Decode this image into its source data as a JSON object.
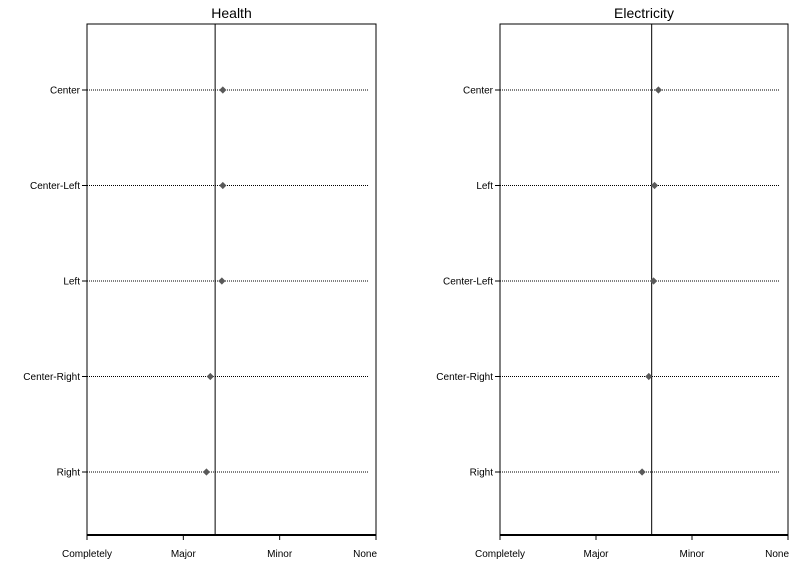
{
  "chart_data": [
    {
      "type": "scatter",
      "title": "Health",
      "categories": [
        "Center",
        "Center-Left",
        "Left",
        "Center-Right",
        "Right"
      ],
      "values": [
        2.41,
        2.41,
        2.4,
        2.28,
        2.24
      ],
      "reference_line": 2.33,
      "x_ticks": [
        {
          "value": 1,
          "label": "Completely"
        },
        {
          "value": 2,
          "label": "Major"
        },
        {
          "value": 3,
          "label": "Minor"
        },
        {
          "value": 4,
          "label": "None"
        }
      ],
      "xlim": [
        1,
        4
      ],
      "xlabel": "",
      "ylabel": "",
      "grid": "dotted horizontal",
      "marker_color": "#595959"
    },
    {
      "type": "scatter",
      "title": "Electricity",
      "categories": [
        "Center",
        "Left",
        "Center-Left",
        "Center-Right",
        "Right"
      ],
      "values": [
        2.65,
        2.61,
        2.6,
        2.55,
        2.48
      ],
      "reference_line": 2.58,
      "x_ticks": [
        {
          "value": 1,
          "label": "Completely"
        },
        {
          "value": 2,
          "label": "Major"
        },
        {
          "value": 3,
          "label": "Minor"
        },
        {
          "value": 4,
          "label": "None"
        }
      ],
      "xlim": [
        1,
        4
      ],
      "xlabel": "",
      "ylabel": "",
      "grid": "dotted horizontal",
      "marker_color": "#595959"
    }
  ]
}
